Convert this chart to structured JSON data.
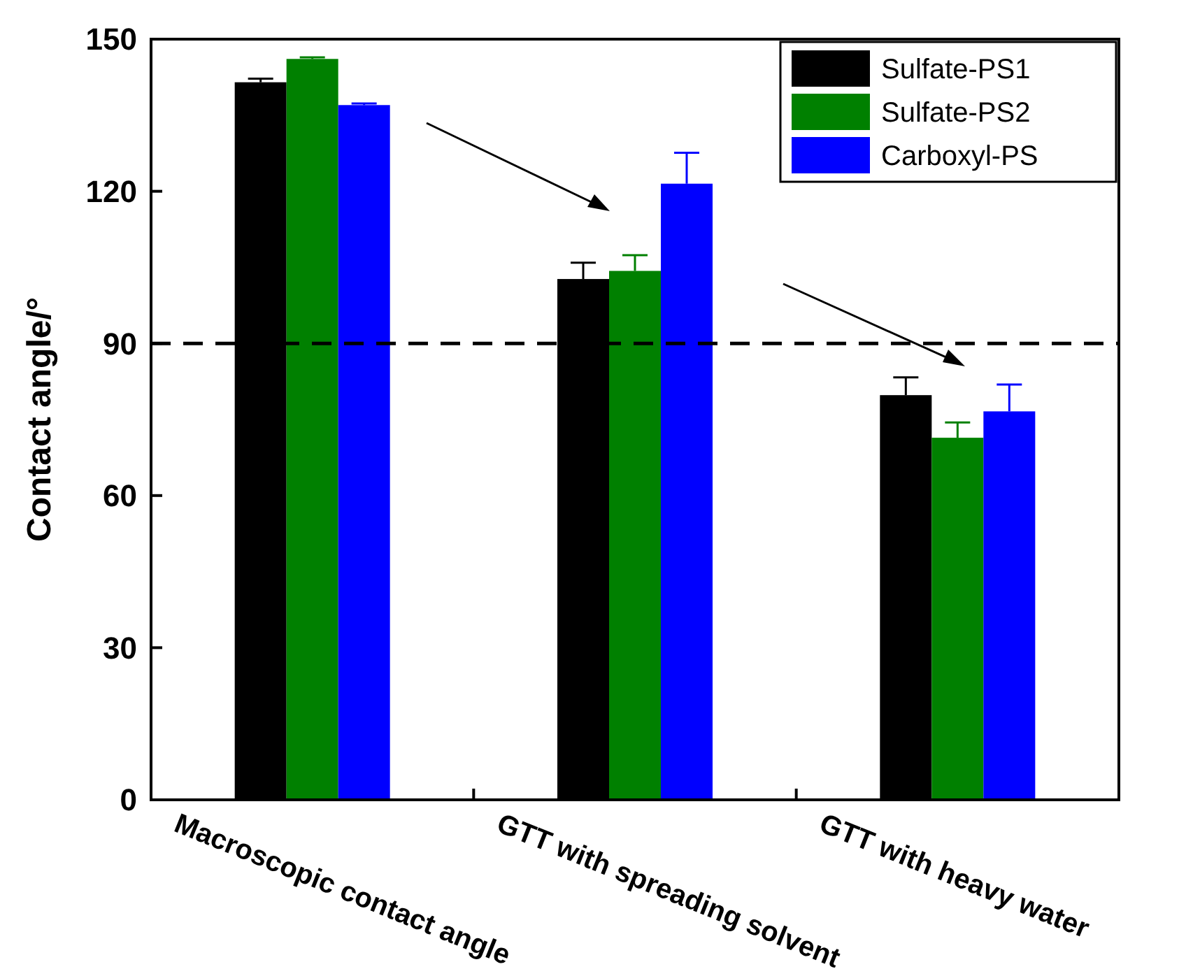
{
  "chart_data": {
    "type": "bar",
    "ylabel": "Contact angle/°",
    "categories": [
      "Macroscopic contact angle",
      "GTT with spreading solvent",
      "GTT with heavy water"
    ],
    "series": [
      {
        "name": "Sulfate-PS1",
        "color": "#000000",
        "values": [
          141.5,
          102.7,
          79.8
        ],
        "errors": [
          0.7,
          3.2,
          3.5
        ]
      },
      {
        "name": "Sulfate-PS2",
        "color": "#008000",
        "values": [
          146.1,
          104.3,
          71.4
        ],
        "errors": [
          0.3,
          3.1,
          3.0
        ]
      },
      {
        "name": "Carboxyl-PS",
        "color": "#0000ff",
        "values": [
          137.0,
          121.5,
          76.6
        ],
        "errors": [
          0.3,
          6.1,
          5.3
        ]
      }
    ],
    "ylim": [
      0,
      150
    ],
    "yticks": [
      0,
      30,
      60,
      90,
      120,
      150
    ],
    "ref_lines": [
      {
        "axis": "y",
        "value": 90,
        "color": "#000000",
        "line_style": "dashed"
      }
    ],
    "legend": "top right",
    "grid": false
  }
}
